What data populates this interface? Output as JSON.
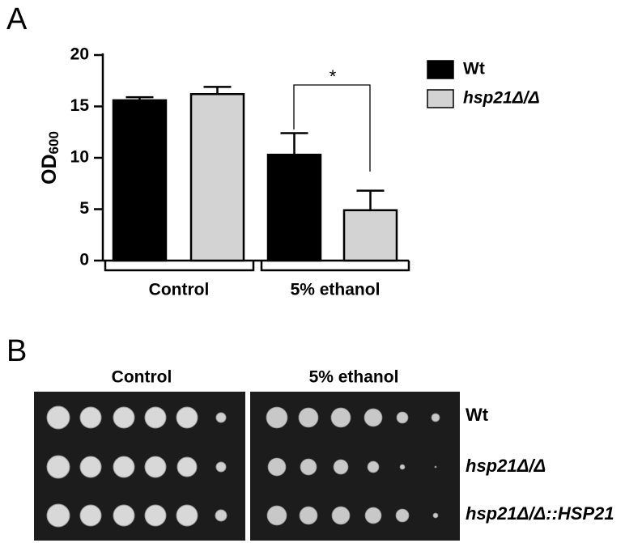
{
  "chart_data": {
    "type": "bar",
    "panel_label": "A",
    "ylabel": "OD",
    "ylabel_sub": "600",
    "categories": [
      "Control",
      "5% ethanol"
    ],
    "series": [
      {
        "name": "Wt",
        "color": "#000000",
        "values": [
          15.6,
          10.3
        ],
        "errors": [
          0.3,
          2.1
        ]
      },
      {
        "name": "hsp21Δ/Δ",
        "color": "#d3d3d3",
        "values": [
          16.2,
          4.9
        ],
        "errors": [
          0.7,
          1.9
        ]
      }
    ],
    "ylim": [
      0,
      20
    ],
    "yticks": [
      0,
      5,
      10,
      15,
      20
    ],
    "annotation": "*",
    "legend": "right"
  },
  "panel_b": {
    "label": "B",
    "columns": [
      "Control",
      "5% ethanol"
    ],
    "rows": [
      "Wt",
      "hsp21Δ/Δ",
      "hsp21Δ/Δ::HSP21"
    ]
  }
}
